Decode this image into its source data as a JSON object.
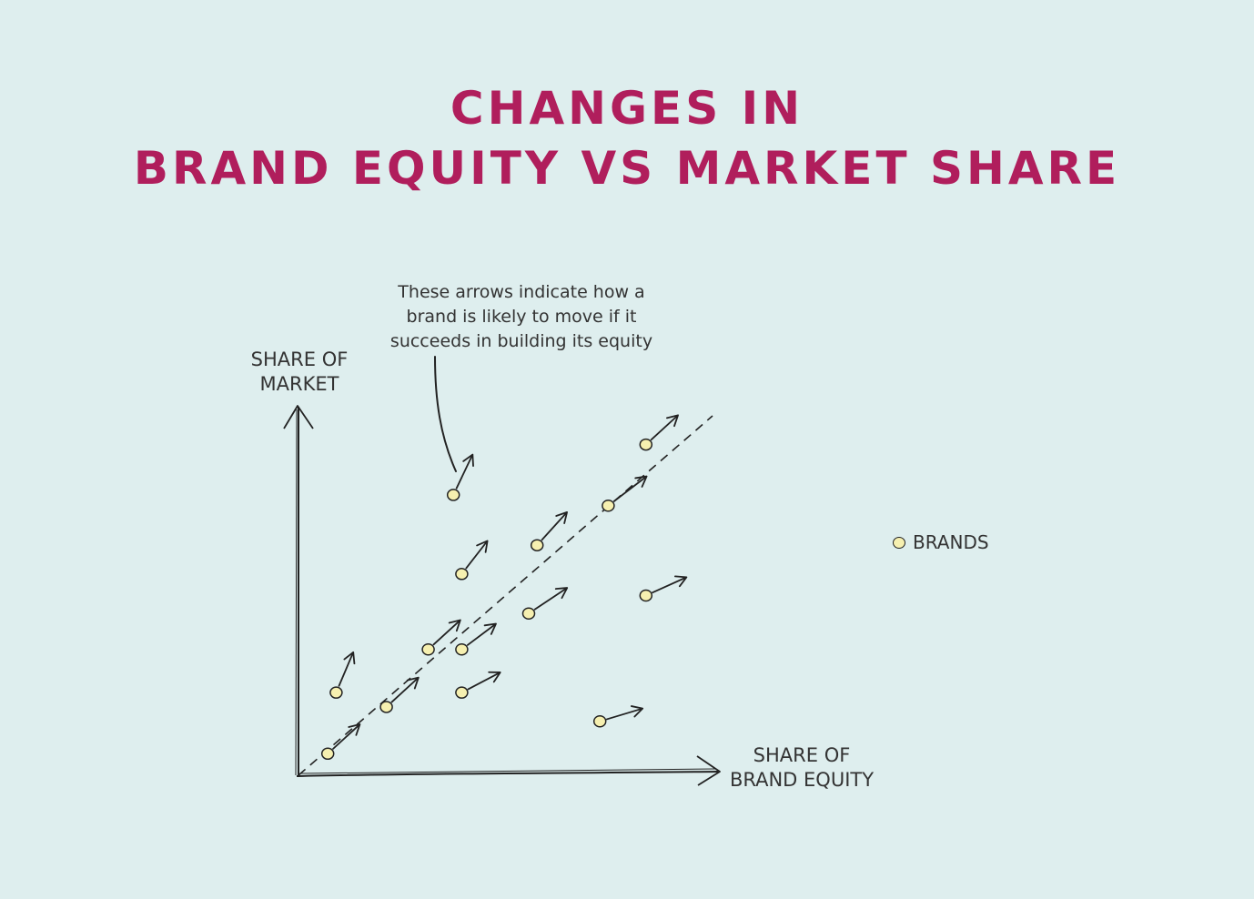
{
  "title_line1": "CHANGES IN",
  "title_line2": "BRAND EQUITY VS MARKET SHARE",
  "annotation_text": "These arrows indicate how a brand is likely to move if it succeeds in building its equity",
  "legend_label": "BRANDS",
  "colors": {
    "title": "#b01e5c",
    "background": "#deeeee",
    "point_fill": "#f6f0b0",
    "ink": "#222222"
  },
  "chart_data": {
    "type": "scatter",
    "xlabel": "SHARE OF BRAND EQUITY",
    "ylabel": "SHARE OF MARKET",
    "xlabel_lines": [
      "SHARE OF",
      "BRAND EQUITY"
    ],
    "ylabel_lines": [
      "SHARE OF",
      "MARKET"
    ],
    "legend": [
      "BRANDS"
    ],
    "legend_position": "right",
    "xlim": [
      0,
      100
    ],
    "ylim": [
      0,
      100
    ],
    "grid": false,
    "reference_line": {
      "style": "dashed",
      "from": [
        0,
        0
      ],
      "to": [
        100,
        100
      ]
    },
    "points": [
      {
        "x": 7,
        "y": 6,
        "dx": 7.5,
        "dy": 8
      },
      {
        "x": 9,
        "y": 23,
        "dx": 4,
        "dy": 11
      },
      {
        "x": 21,
        "y": 19,
        "dx": 7.5,
        "dy": 8
      },
      {
        "x": 31,
        "y": 35,
        "dx": 7.5,
        "dy": 8
      },
      {
        "x": 39,
        "y": 23,
        "dx": 9,
        "dy": 5.5
      },
      {
        "x": 39,
        "y": 35,
        "dx": 8,
        "dy": 7
      },
      {
        "x": 39,
        "y": 56,
        "dx": 6,
        "dy": 9
      },
      {
        "x": 37,
        "y": 78,
        "dx": 4.5,
        "dy": 11
      },
      {
        "x": 55,
        "y": 45,
        "dx": 9,
        "dy": 7
      },
      {
        "x": 57,
        "y": 64,
        "dx": 7,
        "dy": 9
      },
      {
        "x": 74,
        "y": 75,
        "dx": 9,
        "dy": 8
      },
      {
        "x": 72,
        "y": 15,
        "dx": 10,
        "dy": 3.5
      },
      {
        "x": 83,
        "y": 50,
        "dx": 9.5,
        "dy": 5
      },
      {
        "x": 83,
        "y": 92,
        "dx": 7.5,
        "dy": 8
      }
    ]
  }
}
